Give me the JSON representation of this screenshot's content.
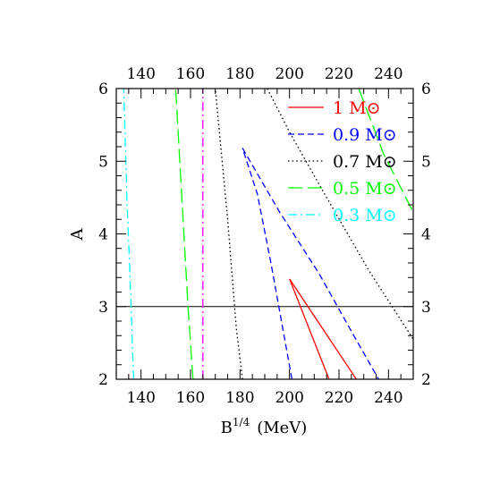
{
  "chart_data": {
    "type": "line",
    "xlabel": "B",
    "xlabel_sup": "1/4",
    "xlabel_units": "(MeV)",
    "ylabel": "A",
    "xlim": [
      130,
      250
    ],
    "ylim": [
      2,
      6
    ],
    "x_ticks": [
      140,
      160,
      180,
      200,
      220,
      240
    ],
    "y_ticks": [
      2,
      3,
      4,
      5,
      6
    ],
    "x_minor_step": 5,
    "y_minor_step": 0.2,
    "ticks_on_all_sides": true,
    "reference_line": {
      "y": 3
    },
    "legend_position": "top-right",
    "legend_symbol": "M⊙",
    "series": [
      {
        "name": "1",
        "color": "#ff0000",
        "dash": "solid",
        "segments": [
          {
            "x": [
              227,
              200,
              216
            ],
            "y": [
              2.0,
              3.38,
              2.0
            ]
          }
        ]
      },
      {
        "name": "0.9",
        "color": "#0000ff",
        "dash": "dashed",
        "segments": [
          {
            "x": [
              201,
              192.5,
              187,
              181
            ],
            "y": [
              2.0,
              3.6,
              4.55,
              5.18
            ]
          },
          {
            "x": [
              181,
              196,
              212,
              226,
              236
            ],
            "y": [
              5.18,
              4.3,
              3.45,
              2.6,
              2.0
            ]
          }
        ]
      },
      {
        "name": "0.7",
        "color": "#000000",
        "dash": "dotted",
        "segments": [
          {
            "x": [
              181,
              178.5,
              175,
              170
            ],
            "y": [
              2.0,
              2.7,
              4.2,
              6.0
            ]
          },
          {
            "x": [
              191,
              200,
              215,
              232,
              250
            ],
            "y": [
              6.0,
              5.4,
              4.5,
              3.5,
              2.55
            ]
          }
        ]
      },
      {
        "name": "0.5",
        "color": "#00ff00",
        "dash": "long-dashed",
        "segments": [
          {
            "x": [
              161,
              159,
              156.5,
              154
            ],
            "y": [
              2.0,
              3.0,
              4.5,
              6.0
            ]
          },
          {
            "x": [
              228,
              238,
              250
            ],
            "y": [
              6.0,
              5.1,
              4.3
            ]
          }
        ]
      },
      {
        "name": "0.3",
        "color": "#00ffff",
        "dash": "dash-dot",
        "segments": [
          {
            "x": [
              137,
              136,
              134.3,
              133
            ],
            "y": [
              2.0,
              3.0,
              4.5,
              6.0
            ]
          }
        ]
      },
      {
        "name": "",
        "color": "#ff00ff",
        "dash": "dash-dot",
        "segments": [
          {
            "x": [
              165,
              165
            ],
            "y": [
              2.0,
              6.0
            ]
          }
        ]
      }
    ]
  }
}
